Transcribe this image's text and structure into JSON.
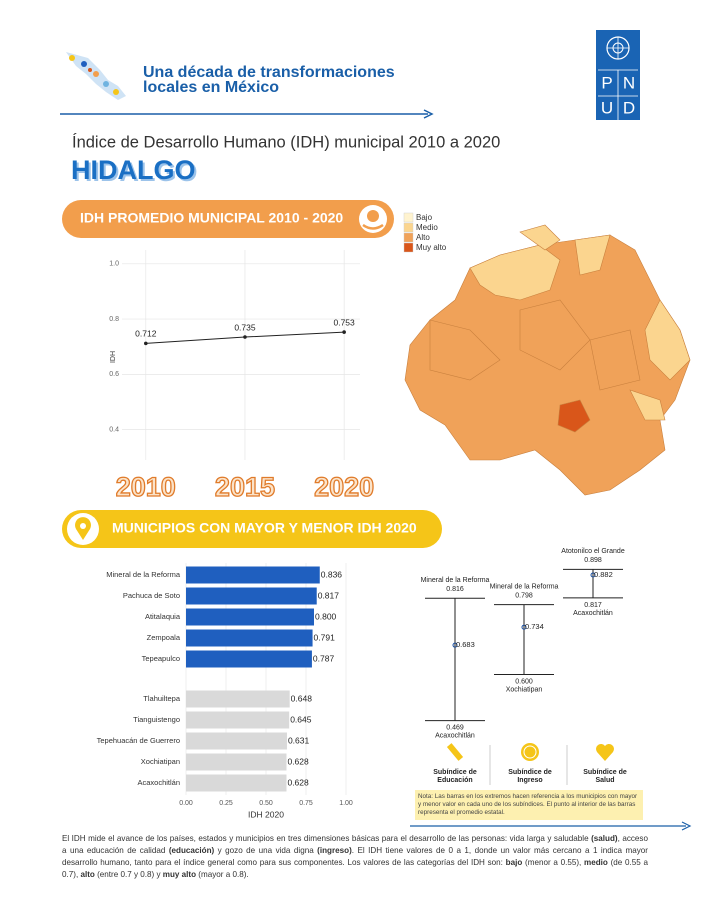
{
  "header": {
    "title_lines": [
      "Una década de transformaciones",
      "locales en México"
    ],
    "logo_letters": [
      "P",
      "N",
      "U",
      "D"
    ]
  },
  "subtitle": "Índice de Desarrollo Humano (IDH) municipal 2010 a 2020",
  "state": "HIDALGO",
  "sections": [
    "IDH PROMEDIO MUNICIPAL 2010 - 2020",
    "MUNICIPIOS CON MAYOR Y MENOR IDH 2020"
  ],
  "map_legend": [
    {
      "label": "Bajo",
      "color": "#fff3cf"
    },
    {
      "label": "Medio",
      "color": "#fbd58f"
    },
    {
      "label": "Alto",
      "color": "#f0a259"
    },
    {
      "label": "Muy alto",
      "color": "#d9561a"
    }
  ],
  "chart_data": [
    {
      "type": "line",
      "x": [
        2010,
        2015,
        2020
      ],
      "values": [
        0.712,
        0.735,
        0.753
      ],
      "color": "#222222",
      "ylabel": "IDH",
      "xlim": [
        2008.8,
        2020.8
      ],
      "ylim": [
        0.29,
        1.05
      ],
      "xticks": [
        2010,
        2015,
        2020
      ],
      "yticks": [
        {
          "value": 1,
          "label": "1.0"
        },
        {
          "value": 0.8,
          "label": "0.8"
        },
        {
          "value": 0.6,
          "label": "0.6"
        },
        {
          "value": 0.4,
          "label": "0.4"
        }
      ],
      "grid": true
    },
    {
      "type": "hbar",
      "categories": [
        "Mineral de la Reforma",
        "Pachuca de Soto",
        "Atitalaquia",
        "Zempoala",
        "Tepeapulco",
        "Tlahuiltepa",
        "Tianguistengo",
        "Tepehuacán de Guerrero",
        "Xochiatipan",
        "Acaxochitlán"
      ],
      "values": [
        0.836,
        0.817,
        0.8,
        0.791,
        0.787,
        0.648,
        0.645,
        0.631,
        0.628,
        0.628
      ],
      "value_labels": [
        "0.836",
        "0.817",
        "0.800",
        "0.791",
        "0.787",
        "0.648",
        "0.645",
        "0.631",
        "0.628",
        "0.628"
      ],
      "colors": [
        "#1f5fbf",
        "#1f5fbf",
        "#1f5fbf",
        "#1f5fbf",
        "#1f5fbf",
        "#d9d9d9",
        "#d9d9d9",
        "#d9d9d9",
        "#d9d9d9",
        "#d9d9d9"
      ],
      "xlabel": "IDH 2020",
      "xlim": [
        0,
        1
      ],
      "xticks": [
        {
          "value": 0,
          "label": "0.00"
        },
        {
          "value": 0.25,
          "label": "0.25"
        },
        {
          "value": 0.5,
          "label": "0.50"
        },
        {
          "value": 0.75,
          "label": "0.75"
        },
        {
          "value": 1,
          "label": "1.00"
        }
      ],
      "grid": true
    },
    {
      "type": "range",
      "ylim": [
        0.4,
        0.95
      ],
      "color": "#1a4fa0",
      "series": [
        {
          "label_lines": [
            "Subíndice de",
            "Educación"
          ],
          "max": 0.816,
          "max_name": "Mineral de la Reforma",
          "min": 0.469,
          "min_name": "Acaxochitlán",
          "mean": 0.683
        },
        {
          "label_lines": [
            "Subíndice de",
            "Ingreso"
          ],
          "max": 0.798,
          "max_name": "Mineral de la Reforma",
          "min": 0.6,
          "min_label": "0.600",
          "min_name": "Xochiatipan",
          "mean": 0.734
        },
        {
          "label_lines": [
            "Subíndice de",
            "Salud"
          ],
          "max": 0.898,
          "max_name": "Atotonilco el Grande",
          "min": 0.817,
          "min_name": "Acaxochitlán",
          "mean": 0.882
        }
      ]
    }
  ],
  "note": "Nota: Las barras en los extremos hacen referencia a los municipios con mayor y menor valor en cada uno de los subíndices. El punto al interior de las barras representa el promedio estatal.",
  "footer": [
    {
      "text": "El IDH mide el avance de los países, estados y municipios en tres dimensiones básicas para el desarrollo de las personas: vida larga y saludable ",
      "bold": false
    },
    {
      "text": "(salud)",
      "bold": true
    },
    {
      "text": ", acceso a una educación de calidad ",
      "bold": false
    },
    {
      "text": "(educación)",
      "bold": true
    },
    {
      "text": " y gozo de una vida digna ",
      "bold": false
    },
    {
      "text": "(ingreso)",
      "bold": true
    },
    {
      "text": ". El IDH tiene valores de 0 a 1, donde un valor más cercano a 1 indica mayor desarrollo humano, tanto para el índice general como para sus componentes. Los valores de las categorías del IDH son: ",
      "bold": false
    },
    {
      "text": "bajo",
      "bold": true
    },
    {
      "text": " (menor a 0.55), ",
      "bold": false
    },
    {
      "text": "medio",
      "bold": true
    },
    {
      "text": " (de 0.55 a 0.7), ",
      "bold": false
    },
    {
      "text": "alto",
      "bold": true
    },
    {
      "text": " (entre 0.7 y 0.8) y ",
      "bold": false
    },
    {
      "text": "muy alto",
      "bold": true
    },
    {
      "text": " (mayor a 0.8).",
      "bold": false
    }
  ]
}
